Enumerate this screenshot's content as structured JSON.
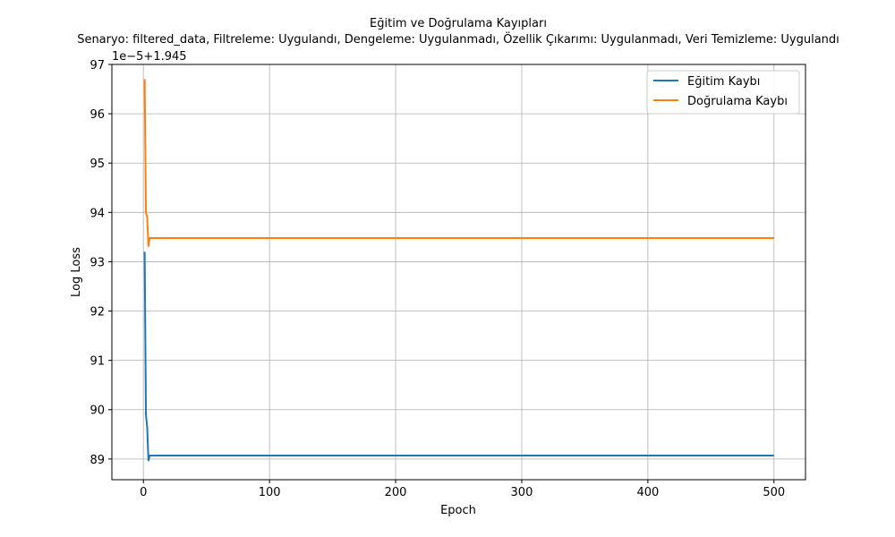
{
  "chart_data": {
    "type": "line",
    "title": "Eğitim ve Doğrulama Kayıpları",
    "subtitle": "Senaryo: filtered_data, Filtreleme: Uygulandı, Dengeleme: Uygulanmadı, Özellik Çıkarımı: Uygulanmadı, Veri Temizleme: Uygulandı",
    "offset_label": "1e−5+1.945",
    "xlabel": "Epoch",
    "ylabel": "Log Loss",
    "xlim": [
      -25,
      525
    ],
    "ylim": [
      88.58,
      97.0
    ],
    "xticks": [
      0,
      100,
      200,
      300,
      400,
      500
    ],
    "yticks": [
      89,
      90,
      91,
      92,
      93,
      94,
      95,
      96,
      97
    ],
    "grid": true,
    "legend_position": "top-right",
    "series": [
      {
        "name": "Eğitim Kaybı",
        "color": "#1f77b4",
        "x": [
          1,
          2,
          3,
          4,
          5,
          6,
          10,
          50,
          100,
          200,
          300,
          400,
          500
        ],
        "y": [
          93.2,
          89.9,
          89.65,
          88.97,
          89.07,
          89.07,
          89.07,
          89.07,
          89.07,
          89.07,
          89.07,
          89.07,
          89.07
        ]
      },
      {
        "name": "Doğrulama Kaybı",
        "color": "#ff7f0e",
        "x": [
          1,
          2,
          3,
          4,
          5,
          6,
          10,
          50,
          100,
          200,
          300,
          400,
          500
        ],
        "y": [
          96.7,
          94.0,
          93.9,
          93.32,
          93.48,
          93.48,
          93.48,
          93.48,
          93.48,
          93.48,
          93.48,
          93.48,
          93.48
        ]
      }
    ]
  }
}
